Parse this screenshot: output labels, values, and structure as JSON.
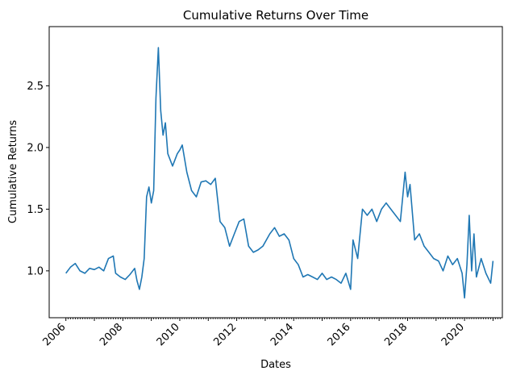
{
  "chart_data": {
    "type": "line",
    "title": "Cumulative Returns Over Time",
    "xlabel": "Dates",
    "ylabel": "Cumulative Returns",
    "xlim": [
      "2005-06-01",
      "2021-05-01"
    ],
    "ylim": [
      0.62,
      2.98
    ],
    "x_ticks": [
      "2006",
      "2008",
      "2010",
      "2012",
      "2014",
      "2016",
      "2018",
      "2020"
    ],
    "y_ticks": [
      "1.0",
      "1.5",
      "2.0",
      "2.5"
    ],
    "line_color": "#1f77b4",
    "grid": false,
    "legend": "none",
    "series": [
      {
        "x": [
          "2006-01-01",
          "2006-03-01",
          "2006-05-01",
          "2006-07-01",
          "2006-09-01",
          "2006-11-01",
          "2007-01-01",
          "2007-03-01",
          "2007-05-01",
          "2007-07-01",
          "2007-09-01",
          "2007-10-01",
          "2007-12-01",
          "2008-02-01",
          "2008-04-01",
          "2008-06-01",
          "2008-07-01",
          "2008-08-01",
          "2008-09-01",
          "2008-10-01",
          "2008-11-01",
          "2008-12-01",
          "2009-01-01",
          "2009-02-01",
          "2009-03-01",
          "2009-04-01",
          "2009-05-01",
          "2009-06-01",
          "2009-07-01",
          "2009-08-01",
          "2009-10-01",
          "2009-12-01",
          "2010-01-01",
          "2010-02-01",
          "2010-04-01",
          "2010-06-01",
          "2010-08-01",
          "2010-10-01",
          "2010-12-01",
          "2011-02-01",
          "2011-04-01",
          "2011-06-01",
          "2011-08-01",
          "2011-10-01",
          "2011-12-01",
          "2012-02-01",
          "2012-04-01",
          "2012-06-01",
          "2012-08-01",
          "2012-10-01",
          "2012-12-01",
          "2013-03-01",
          "2013-05-01",
          "2013-07-01",
          "2013-09-01",
          "2013-11-01",
          "2014-01-01",
          "2014-03-01",
          "2014-05-01",
          "2014-07-01",
          "2014-09-01",
          "2014-11-01",
          "2015-01-01",
          "2015-03-01",
          "2015-05-01",
          "2015-07-01",
          "2015-09-01",
          "2015-11-01",
          "2016-01-01",
          "2016-02-01",
          "2016-04-01",
          "2016-06-01",
          "2016-08-01",
          "2016-10-01",
          "2016-12-01",
          "2017-02-01",
          "2017-04-01",
          "2017-06-01",
          "2017-08-01",
          "2017-10-01",
          "2017-12-01",
          "2018-01-01",
          "2018-02-01",
          "2018-04-01",
          "2018-06-01",
          "2018-08-01",
          "2018-10-01",
          "2018-12-01",
          "2019-02-01",
          "2019-04-01",
          "2019-06-01",
          "2019-08-01",
          "2019-10-01",
          "2019-12-01",
          "2020-01-01",
          "2020-02-01",
          "2020-03-01",
          "2020-04-01",
          "2020-05-01",
          "2020-06-01",
          "2020-08-01",
          "2020-10-01",
          "2020-12-01",
          "2021-01-01"
        ],
        "values": [
          0.98,
          1.03,
          1.06,
          1.0,
          0.98,
          1.02,
          1.01,
          1.03,
          1.0,
          1.1,
          1.12,
          0.98,
          0.95,
          0.93,
          0.97,
          1.02,
          0.92,
          0.85,
          0.95,
          1.1,
          1.6,
          1.68,
          1.55,
          1.65,
          2.4,
          2.81,
          2.3,
          2.1,
          2.2,
          1.95,
          1.85,
          1.95,
          1.98,
          2.02,
          1.8,
          1.65,
          1.6,
          1.72,
          1.73,
          1.7,
          1.75,
          1.4,
          1.35,
          1.2,
          1.3,
          1.4,
          1.42,
          1.2,
          1.15,
          1.17,
          1.2,
          1.3,
          1.35,
          1.28,
          1.3,
          1.25,
          1.1,
          1.05,
          0.95,
          0.97,
          0.95,
          0.93,
          0.98,
          0.93,
          0.95,
          0.93,
          0.9,
          0.98,
          0.85,
          1.25,
          1.1,
          1.5,
          1.45,
          1.5,
          1.4,
          1.5,
          1.55,
          1.5,
          1.45,
          1.4,
          1.8,
          1.6,
          1.7,
          1.25,
          1.3,
          1.2,
          1.15,
          1.1,
          1.08,
          1.0,
          1.12,
          1.05,
          1.1,
          0.98,
          0.78,
          1.05,
          1.45,
          1.0,
          1.3,
          0.95,
          1.1,
          0.98,
          0.9,
          1.08
        ]
      }
    ]
  }
}
